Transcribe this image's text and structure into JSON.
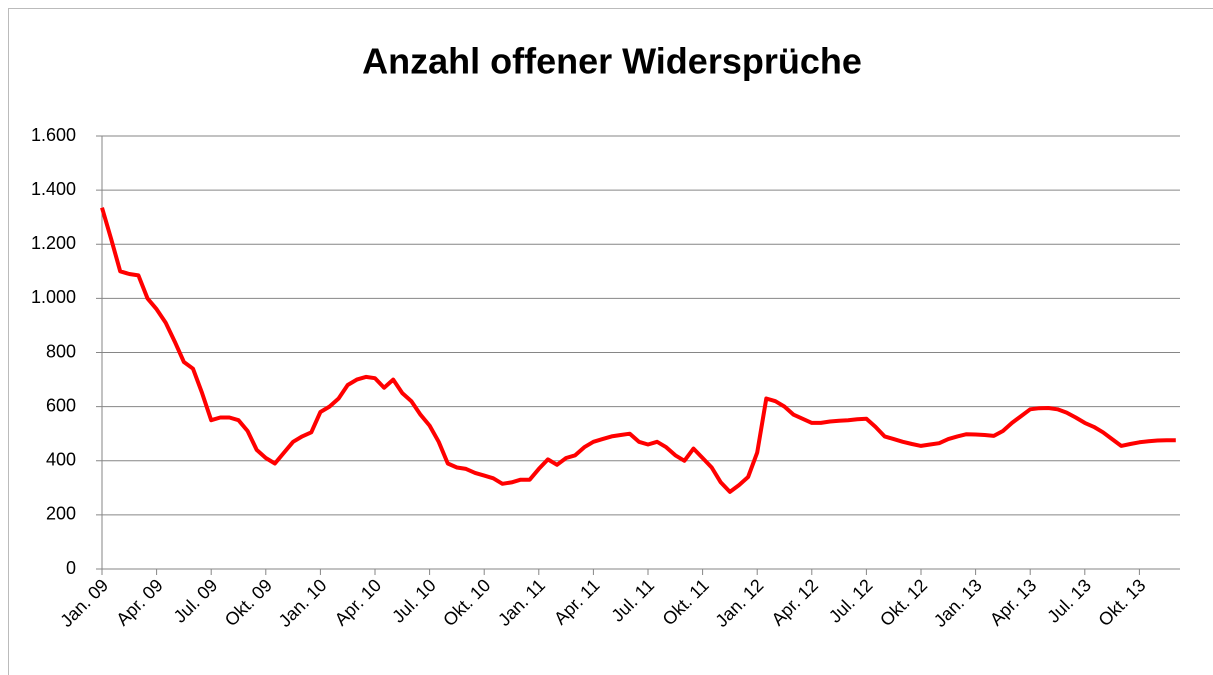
{
  "chart_data": {
    "type": "line",
    "title": "Anzahl offener Widersprüche",
    "categories": [
      "Jan. 09",
      null,
      null,
      null,
      null,
      null,
      "Apr. 09",
      null,
      null,
      null,
      null,
      null,
      "Jul. 09",
      null,
      null,
      null,
      null,
      null,
      "Okt. 09",
      null,
      null,
      null,
      null,
      null,
      "Jan. 10",
      null,
      null,
      null,
      null,
      null,
      "Apr. 10",
      null,
      null,
      null,
      null,
      null,
      "Jul. 10",
      null,
      null,
      null,
      null,
      null,
      "Okt. 10",
      null,
      null,
      null,
      null,
      null,
      "Jan. 11",
      null,
      null,
      null,
      null,
      null,
      "Apr. 11",
      null,
      null,
      null,
      null,
      null,
      "Jul. 11",
      null,
      null,
      null,
      null,
      null,
      "Okt. 11",
      null,
      null,
      null,
      null,
      null,
      "Jan. 12",
      null,
      null,
      null,
      null,
      null,
      "Apr. 12",
      null,
      null,
      null,
      null,
      null,
      "Jul. 12",
      null,
      null,
      null,
      null,
      null,
      "Okt. 12",
      null,
      null,
      null,
      null,
      null,
      "Jan. 13",
      null,
      null,
      null,
      null,
      null,
      "Apr. 13",
      null,
      null,
      null,
      null,
      null,
      "Jul. 13",
      null,
      null,
      null,
      null,
      null,
      "Okt. 13",
      null,
      null,
      null,
      null
    ],
    "series": [
      {
        "color": "#ff0000",
        "values": [
          1335,
          1220,
          1100,
          1090,
          1085,
          1000,
          960,
          910,
          840,
          765,
          740,
          650,
          550,
          560,
          560,
          550,
          510,
          440,
          410,
          390,
          430,
          470,
          490,
          505,
          580,
          600,
          630,
          680,
          700,
          710,
          705,
          670,
          700,
          650,
          620,
          570,
          530,
          470,
          390,
          375,
          370,
          355,
          345,
          335,
          315,
          320,
          330,
          330,
          370,
          405,
          385,
          410,
          420,
          450,
          470,
          480,
          490,
          495,
          500,
          470,
          460,
          470,
          450,
          420,
          400,
          445,
          410,
          375,
          320,
          285,
          310,
          340,
          430,
          630,
          620,
          600,
          570,
          555,
          540,
          540,
          545,
          548,
          550,
          553,
          555,
          525,
          490,
          480,
          470,
          462,
          455,
          460,
          465,
          480,
          490,
          498,
          497,
          495,
          492,
          510,
          540,
          565,
          590,
          594,
          595,
          590,
          578,
          560,
          540,
          525,
          505,
          480,
          455,
          462,
          468,
          472,
          475,
          476,
          476
        ]
      }
    ],
    "ylim": [
      0,
      1600
    ],
    "yticks": [
      0,
      200,
      400,
      600,
      800,
      {
        "value": 1000,
        "label": "1.000"
      },
      {
        "value": 1200,
        "label": "1.200"
      },
      {
        "value": 1400,
        "label": "1.400"
      },
      {
        "value": 1600,
        "label": "1.600"
      }
    ],
    "grid": true
  }
}
